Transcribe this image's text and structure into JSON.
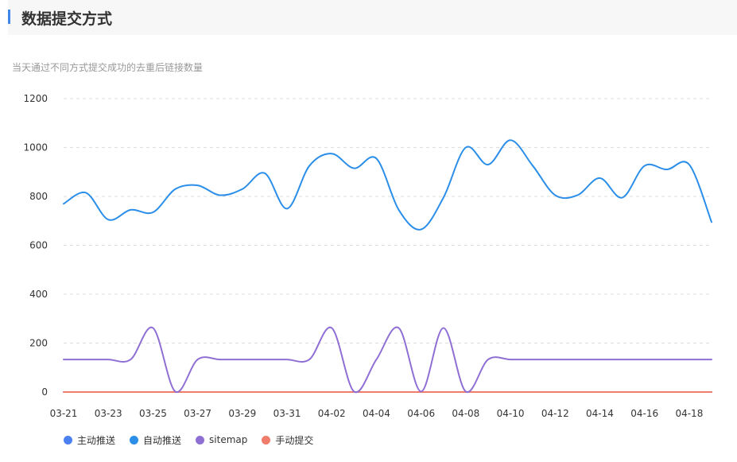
{
  "header": {
    "title": "数据提交方式"
  },
  "subtitle": "当天通过不同方式提交成功的去重后链接数量",
  "colors": {
    "grid": "#dddddd",
    "axis_text": "#333333",
    "accent": "#3e86ea"
  },
  "chart_data": {
    "type": "line",
    "title": "",
    "xlabel": "",
    "ylabel": "",
    "ylim": [
      0,
      1200
    ],
    "yticks": [
      0,
      200,
      400,
      600,
      800,
      1000,
      1200
    ],
    "x": [
      "03-21",
      "03-22",
      "03-23",
      "03-24",
      "03-25",
      "03-26",
      "03-27",
      "03-28",
      "03-29",
      "03-30",
      "03-31",
      "04-01",
      "04-02",
      "04-03",
      "04-04",
      "04-05",
      "04-06",
      "04-07",
      "04-08",
      "04-09",
      "04-10",
      "04-11",
      "04-12",
      "04-13",
      "04-14",
      "04-15",
      "04-16",
      "04-17",
      "04-18",
      "04-19"
    ],
    "xtick_labels": [
      "03-21",
      "03-23",
      "03-25",
      "03-27",
      "03-29",
      "03-31",
      "04-02",
      "04-04",
      "04-06",
      "04-08",
      "04-10",
      "04-12",
      "04-14",
      "04-16",
      "04-18"
    ],
    "grid": true,
    "legend_position": "bottom-left",
    "series": [
      {
        "name": "主动推送",
        "color": "#4a80f0",
        "values": [
          0,
          0,
          0,
          0,
          0,
          0,
          0,
          0,
          0,
          0,
          0,
          0,
          0,
          0,
          0,
          0,
          0,
          0,
          0,
          0,
          0,
          0,
          0,
          0,
          0,
          0,
          0,
          0,
          0,
          0
        ]
      },
      {
        "name": "自动推送",
        "color": "#2b8ee8",
        "values": [
          770,
          815,
          705,
          745,
          735,
          830,
          845,
          805,
          830,
          895,
          750,
          925,
          975,
          915,
          955,
          745,
          665,
          795,
          1000,
          930,
          1030,
          925,
          805,
          805,
          875,
          795,
          925,
          910,
          930,
          695
        ]
      },
      {
        "name": "sitemap",
        "color": "#8f6fd4",
        "values": [
          133,
          133,
          133,
          133,
          262,
          2,
          133,
          133,
          133,
          133,
          133,
          133,
          262,
          2,
          133,
          262,
          2,
          262,
          2,
          133,
          133,
          133,
          133,
          133,
          133,
          133,
          133,
          133,
          133,
          133
        ]
      },
      {
        "name": "手动提交",
        "color": "#f07c6c",
        "values": [
          0,
          0,
          0,
          0,
          0,
          0,
          0,
          0,
          0,
          0,
          0,
          0,
          0,
          0,
          0,
          0,
          0,
          0,
          0,
          0,
          0,
          0,
          0,
          0,
          0,
          0,
          0,
          0,
          0,
          0
        ]
      }
    ]
  }
}
